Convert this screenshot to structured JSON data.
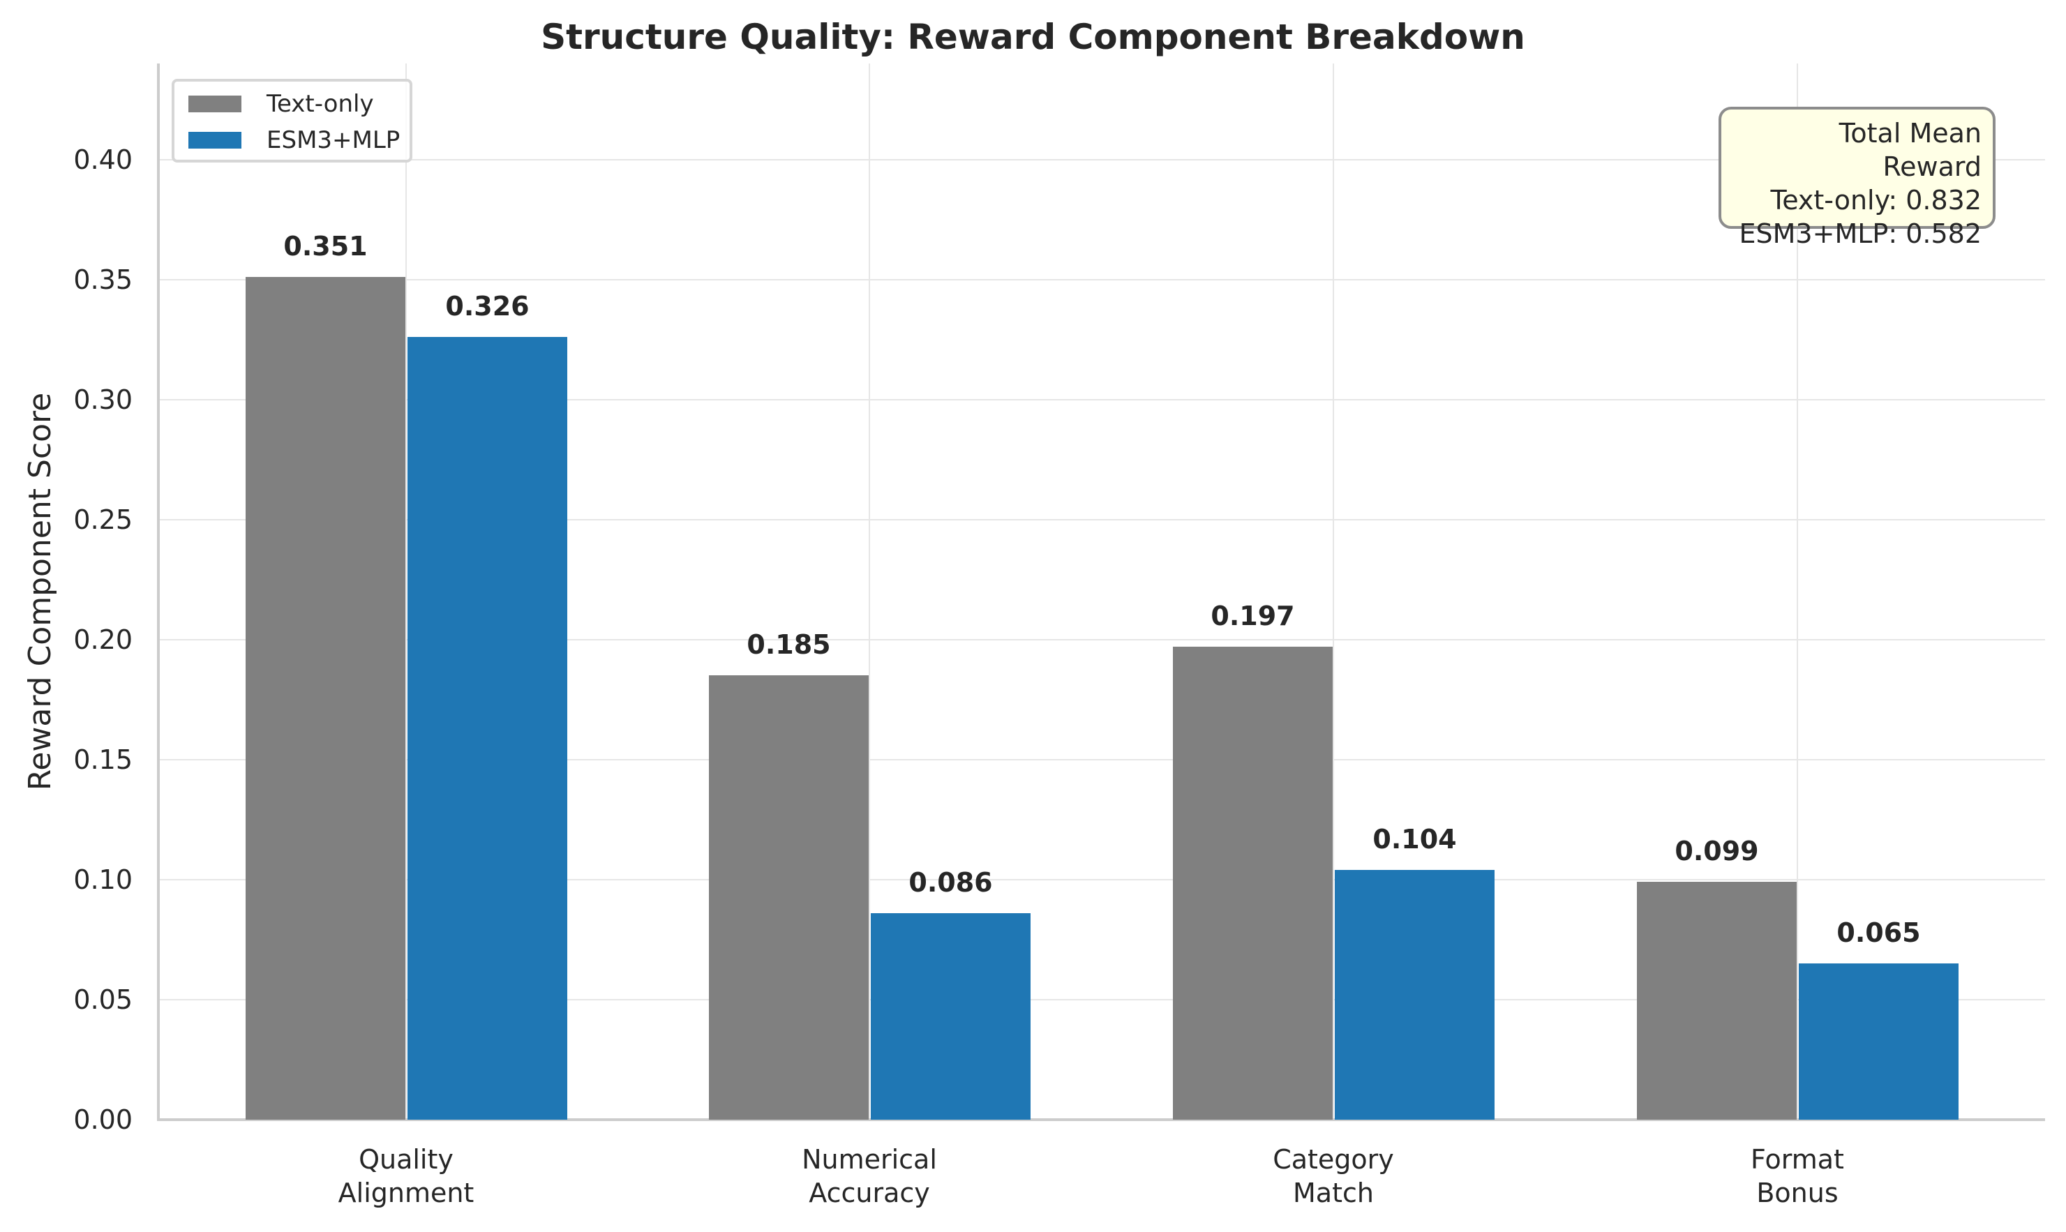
{
  "chart_data": {
    "type": "bar",
    "title": "Structure Quality: Reward Component Breakdown",
    "xlabel": "",
    "ylabel": "Reward Component Score",
    "categories": [
      "Quality\nAlignment",
      "Numerical\nAccuracy",
      "Category\nMatch",
      "Format\nBonus"
    ],
    "category_lines": [
      [
        "Quality",
        "Alignment"
      ],
      [
        "Numerical",
        "Accuracy"
      ],
      [
        "Category",
        "Match"
      ],
      [
        "Format",
        "Bonus"
      ]
    ],
    "series": [
      {
        "name": "Text-only",
        "color": "#808080",
        "values": [
          0.351,
          0.185,
          0.197,
          0.099
        ],
        "labels": [
          "0.351",
          "0.185",
          "0.197",
          "0.099"
        ]
      },
      {
        "name": "ESM3+MLP",
        "color": "#1f77b4",
        "values": [
          0.326,
          0.086,
          0.104,
          0.065
        ],
        "labels": [
          "0.326",
          "0.086",
          "0.104",
          "0.065"
        ]
      }
    ],
    "ylim": [
      0,
      0.44
    ],
    "yticks": [
      "0.00",
      "0.05",
      "0.10",
      "0.15",
      "0.20",
      "0.25",
      "0.30",
      "0.35",
      "0.40"
    ],
    "grid": true,
    "legend_position": "upper left",
    "annotation": {
      "lines": [
        "Total Mean Reward",
        "Text-only: 0.832",
        "ESM3+MLP: 0.582"
      ],
      "position": "upper right"
    }
  }
}
